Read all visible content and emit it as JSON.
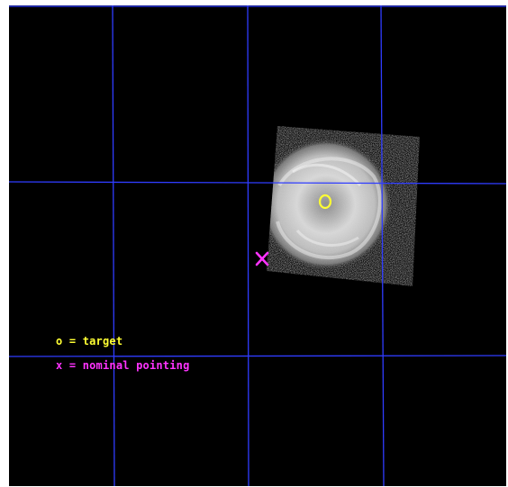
{
  "colors": {
    "background": "#000000",
    "grid": "#2f3cff",
    "target": "#ffff33",
    "nominal": "#ff33ff"
  },
  "markers": {
    "target_symbol": "target-circle-marker",
    "nominal_symbol": "nominal-pointing-x-marker"
  },
  "legend": {
    "target_text": "o = target",
    "nominal_text": "x = nominal pointing"
  }
}
